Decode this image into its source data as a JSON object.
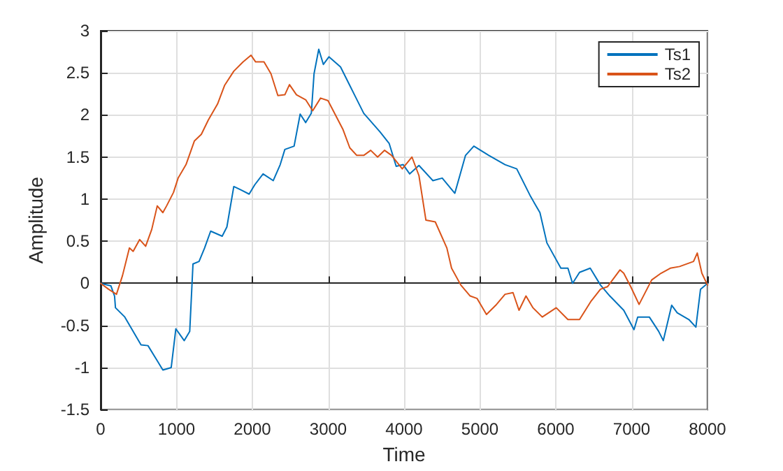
{
  "chart_data": {
    "type": "line",
    "xlabel": "Time",
    "ylabel": "Amplitude",
    "xlim": [
      0,
      8000
    ],
    "xticks": [
      0,
      1000,
      2000,
      3000,
      4000,
      5000,
      6000,
      7000,
      8000
    ],
    "ylim": [
      -1.5,
      3
    ],
    "yticks": [
      -1.5,
      -1,
      -0.5,
      0,
      0.5,
      1,
      1.5,
      2,
      2.5,
      3
    ],
    "grid": true,
    "legend": "top right",
    "marker": "none",
    "line_style": "solid",
    "series": [
      {
        "name": "Ts1",
        "color": "#0072bd",
        "x": [
          0,
          135,
          183,
          195,
          318,
          532,
          624,
          746,
          820,
          930,
          991,
          1101,
          1174,
          1217,
          1297,
          1370,
          1450,
          1602,
          1664,
          1755,
          1847,
          1957,
          2031,
          2141,
          2275,
          2367,
          2428,
          2550,
          2630,
          2703,
          2777,
          2813,
          2875,
          2936,
          3009,
          3162,
          3284,
          3468,
          3682,
          3804,
          3896,
          3988,
          4074,
          4196,
          4380,
          4503,
          4669,
          4810,
          4920,
          5117,
          5331,
          5485,
          5669,
          5791,
          5883,
          6067,
          6160,
          6221,
          6313,
          6454,
          6589,
          6712,
          6896,
          7031,
          7080,
          7233,
          7356,
          7417,
          7528,
          7601,
          7755,
          7847,
          7908,
          8000
        ],
        "values": [
          0,
          -0.03,
          -0.15,
          -0.29,
          -0.4,
          -0.73,
          -0.74,
          -0.92,
          -1.03,
          -1,
          -0.54,
          -0.68,
          -0.57,
          0.23,
          0.26,
          0.42,
          0.62,
          0.56,
          0.67,
          1.15,
          1.11,
          1.06,
          1.17,
          1.3,
          1.22,
          1.41,
          1.59,
          1.63,
          2.01,
          1.91,
          2.02,
          2.49,
          2.78,
          2.6,
          2.69,
          2.57,
          2.35,
          2.02,
          1.8,
          1.66,
          1.39,
          1.41,
          1.3,
          1.4,
          1.22,
          1.25,
          1.07,
          1.52,
          1.63,
          1.52,
          1.41,
          1.36,
          1.03,
          0.84,
          0.48,
          0.18,
          0.18,
          0,
          0.13,
          0.18,
          -0.02,
          -0.15,
          -0.32,
          -0.55,
          -0.4,
          -0.4,
          -0.57,
          -0.68,
          -0.26,
          -0.35,
          -0.43,
          -0.52,
          -0.07,
          0
        ]
      },
      {
        "name": "Ts2",
        "color": "#d95319",
        "x": [
          0,
          104,
          208,
          287,
          379,
          428,
          514,
          593,
          673,
          746,
          820,
          869,
          960,
          1021,
          1125,
          1235,
          1327,
          1419,
          1541,
          1633,
          1755,
          1878,
          1982,
          2043,
          2153,
          2245,
          2336,
          2428,
          2489,
          2581,
          2703,
          2795,
          2899,
          2997,
          3101,
          3193,
          3284,
          3376,
          3468,
          3560,
          3651,
          3743,
          3835,
          3976,
          4104,
          4196,
          4288,
          4411,
          4564,
          4626,
          4748,
          4871,
          4963,
          5086,
          5209,
          5331,
          5436,
          5515,
          5607,
          5699,
          5822,
          6006,
          6160,
          6313,
          6466,
          6589,
          6681,
          6847,
          6896,
          6988,
          7098,
          7264,
          7387,
          7509,
          7632,
          7816,
          7865,
          7926,
          8000
        ],
        "values": [
          0,
          -0.07,
          -0.13,
          0.09,
          0.42,
          0.38,
          0.52,
          0.44,
          0.64,
          0.92,
          0.84,
          0.92,
          1.08,
          1.25,
          1.41,
          1.69,
          1.77,
          1.94,
          2.13,
          2.35,
          2.52,
          2.63,
          2.71,
          2.63,
          2.63,
          2.49,
          2.23,
          2.24,
          2.36,
          2.24,
          2.18,
          2.05,
          2.2,
          2.17,
          1.99,
          1.83,
          1.61,
          1.52,
          1.52,
          1.58,
          1.5,
          1.58,
          1.52,
          1.36,
          1.5,
          1.28,
          0.75,
          0.73,
          0.42,
          0.18,
          -0.02,
          -0.15,
          -0.18,
          -0.37,
          -0.26,
          -0.13,
          -0.11,
          -0.32,
          -0.15,
          -0.29,
          -0.4,
          -0.29,
          -0.43,
          -0.43,
          -0.21,
          -0.07,
          -0.04,
          0.16,
          0.12,
          -0.04,
          -0.25,
          0.04,
          0.12,
          0.18,
          0.2,
          0.26,
          0.36,
          0.12,
          -0.02
        ]
      }
    ]
  }
}
